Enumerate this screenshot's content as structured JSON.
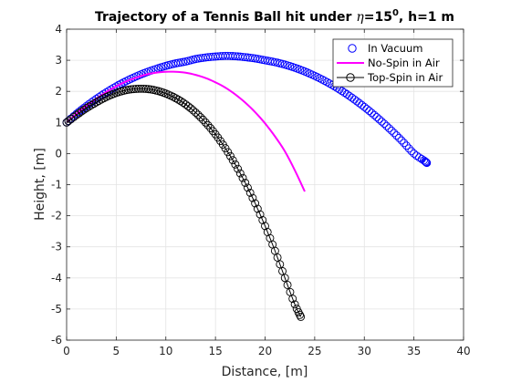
{
  "chart_data": {
    "type": "line",
    "title": {
      "prefix": "Trajectory of a Tennis Ball hit under ",
      "symbol": "η",
      "angle": "=15",
      "superscript": "0",
      "suffix": ", h=1 m"
    },
    "xlabel": "Distance, [m]",
    "ylabel": "Height, [m]",
    "xlim": [
      0,
      40
    ],
    "ylim": [
      -6,
      4
    ],
    "xticks": [
      0,
      5,
      10,
      15,
      20,
      25,
      30,
      35,
      40
    ],
    "yticks": [
      -6,
      -5,
      -4,
      -3,
      -2,
      -1,
      0,
      1,
      2,
      3,
      4
    ],
    "grid": true,
    "legend_position": "top-right",
    "series": [
      {
        "name": "In Vacuum",
        "style": "markers",
        "marker": "circle",
        "color": "#0000ff",
        "x": [
          0,
          1,
          2,
          3,
          4,
          5,
          6,
          7,
          8,
          9,
          10,
          11,
          12,
          13,
          14,
          15,
          16,
          17,
          18,
          19,
          20,
          21,
          22,
          23,
          24,
          25,
          26,
          27,
          28,
          29,
          30,
          31,
          32,
          33,
          34,
          35,
          36,
          36.3
        ],
        "y": [
          1.0,
          1.28,
          1.53,
          1.76,
          1.97,
          2.16,
          2.33,
          2.48,
          2.61,
          2.72,
          2.82,
          2.9,
          2.96,
          3.04,
          3.09,
          3.12,
          3.14,
          3.13,
          3.1,
          3.06,
          3.0,
          2.94,
          2.86,
          2.76,
          2.64,
          2.5,
          2.34,
          2.16,
          1.96,
          1.74,
          1.5,
          1.24,
          0.96,
          0.66,
          0.34,
          0.0,
          -0.22,
          -0.3
        ]
      },
      {
        "name": "No-Spin in Air",
        "style": "line",
        "color": "#ff00ff",
        "x": [
          0,
          1,
          2,
          3,
          4,
          5,
          6,
          7,
          8,
          9,
          10,
          11,
          12,
          13,
          14,
          15,
          16,
          17,
          18,
          19,
          20,
          21,
          22,
          23,
          24
        ],
        "y": [
          1.0,
          1.28,
          1.54,
          1.77,
          1.98,
          2.16,
          2.32,
          2.44,
          2.54,
          2.6,
          2.63,
          2.63,
          2.6,
          2.53,
          2.43,
          2.29,
          2.12,
          1.9,
          1.64,
          1.33,
          0.97,
          0.55,
          0.07,
          -0.54,
          -1.22
        ]
      },
      {
        "name": "Top-Spin in Air",
        "style": "line+markers",
        "marker": "circle",
        "color": "#000000",
        "x": [
          0,
          1,
          2,
          3,
          4,
          5,
          6,
          7,
          8,
          9,
          10,
          11,
          12,
          13,
          14,
          15,
          16,
          17,
          18,
          19,
          20,
          21,
          22,
          23,
          23.6
        ],
        "y": [
          1.0,
          1.24,
          1.46,
          1.65,
          1.82,
          1.95,
          2.04,
          2.08,
          2.08,
          2.03,
          1.93,
          1.78,
          1.58,
          1.32,
          1.0,
          0.62,
          0.17,
          -0.35,
          -0.94,
          -1.6,
          -2.33,
          -3.13,
          -4.0,
          -4.85,
          -5.25
        ]
      }
    ]
  }
}
